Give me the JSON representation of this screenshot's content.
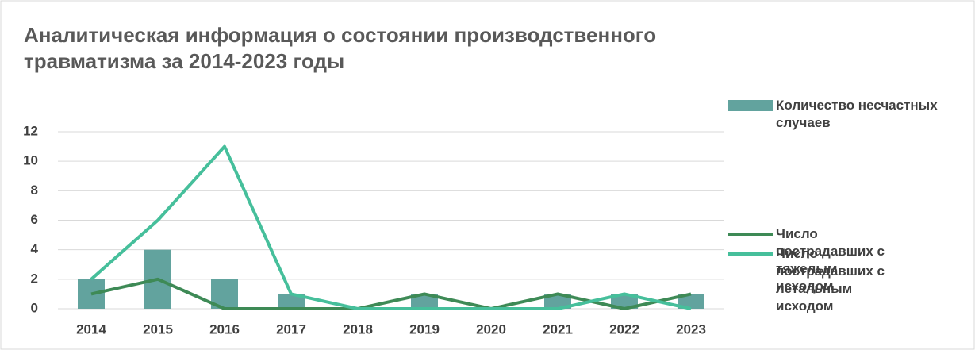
{
  "chart_data": {
    "type": "bar_line",
    "title": "Аналитическая информация о состоянии производственного травматизма за 2014-2023 годы",
    "categories": [
      "2014",
      "2015",
      "2016",
      "2017",
      "2018",
      "2019",
      "2020",
      "2021",
      "2022",
      "2023"
    ],
    "series": [
      {
        "name": "Количество несчастных случаев",
        "type": "bar",
        "color": "#62a39e",
        "values": [
          2,
          4,
          2,
          1,
          0,
          1,
          0,
          1,
          1,
          1
        ]
      },
      {
        "name": "Число пострадавших с тяжелым исходом",
        "type": "line",
        "color": "#3e8a56",
        "values": [
          1,
          2,
          0,
          0,
          0,
          1,
          0,
          1,
          0,
          1
        ]
      },
      {
        "name": "Число пострадавших с летальным исходом",
        "type": "line",
        "color": "#46bf9b",
        "values": [
          2,
          6,
          11,
          1,
          0,
          0,
          0,
          0,
          1,
          0
        ]
      }
    ],
    "ylim": [
      0,
      12
    ],
    "yticks": [
      0,
      2,
      4,
      6,
      8,
      10,
      12
    ],
    "grid": true,
    "legend": "right"
  }
}
